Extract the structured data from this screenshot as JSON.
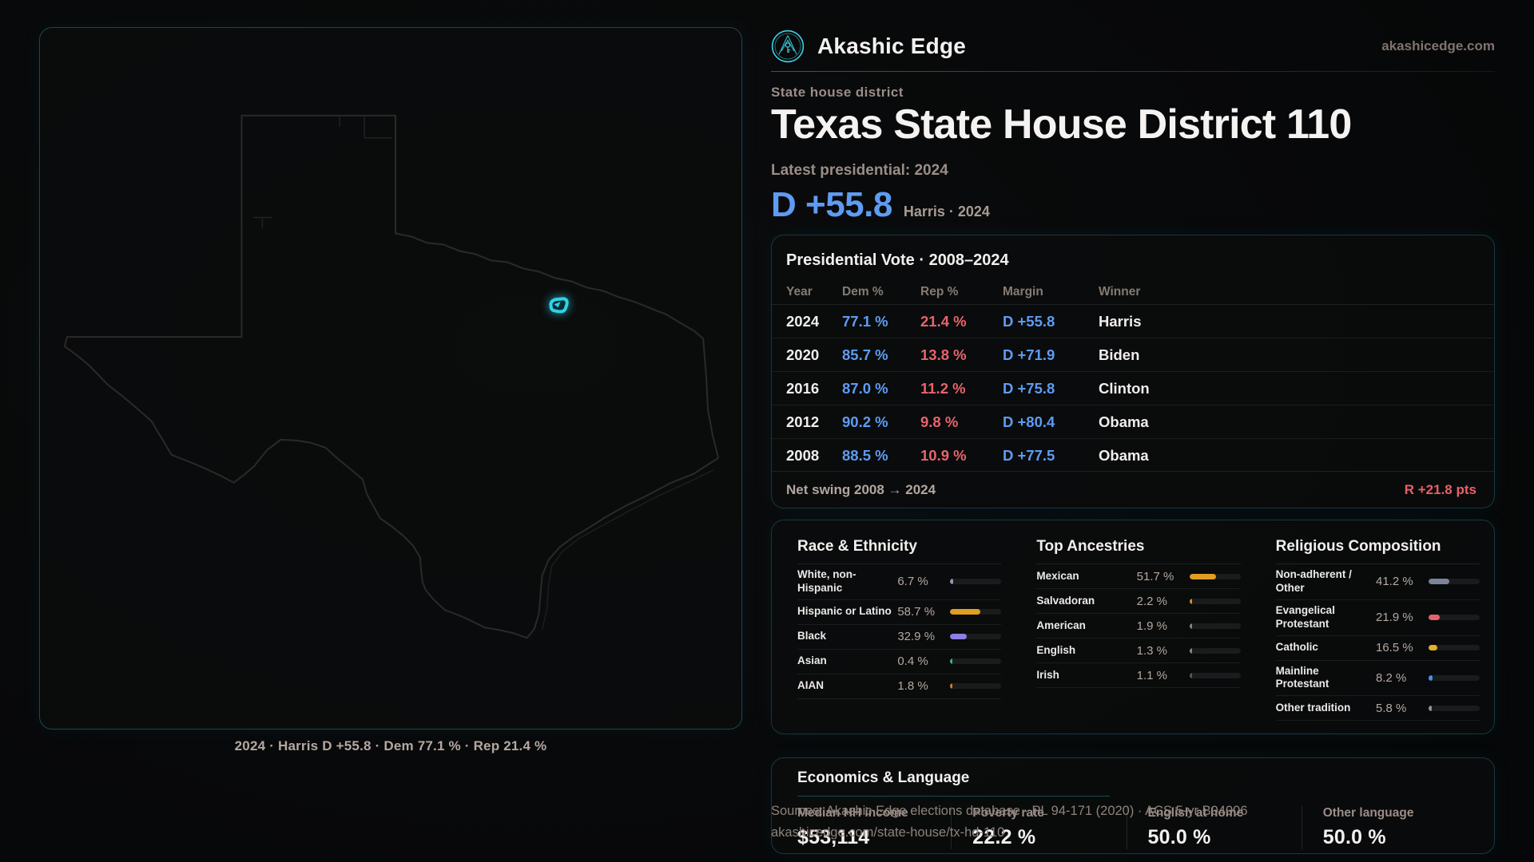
{
  "brand": {
    "name": "Akashic Edge",
    "domain": "akashicedge.com",
    "logo_icon": "akashic-edge-emblem"
  },
  "page": {
    "kicker": "State house district",
    "title": "Texas State House District 110",
    "latest_label": "Latest presidential: 2024",
    "margin_value": "D +55.8",
    "margin_context": "Harris · 2024"
  },
  "map": {
    "caption": "2024 · Harris D +55.8 · Dem 77.1 % · Rep 21.4 %",
    "district_color": "#2fd3e6"
  },
  "presidential_table": {
    "title": "Presidential Vote · 2008–2024",
    "columns": [
      "Year",
      "Dem %",
      "Rep %",
      "Margin",
      "Winner"
    ],
    "rows": [
      {
        "year": "2024",
        "dem": "77.1 %",
        "rep": "21.4 %",
        "margin": "D +55.8",
        "winner": "Harris"
      },
      {
        "year": "2020",
        "dem": "85.7 %",
        "rep": "13.8 %",
        "margin": "D +71.9",
        "winner": "Biden"
      },
      {
        "year": "2016",
        "dem": "87.0 %",
        "rep": "11.2 %",
        "margin": "D +75.8",
        "winner": "Clinton"
      },
      {
        "year": "2012",
        "dem": "90.2 %",
        "rep": "9.8 %",
        "margin": "D +80.4",
        "winner": "Obama"
      },
      {
        "year": "2008",
        "dem": "88.5 %",
        "rep": "10.9 %",
        "margin": "D +77.5",
        "winner": "Obama"
      }
    ],
    "footer": {
      "label": "Net swing 2008 → 2024",
      "value": "R +21.8 pts"
    }
  },
  "demographics": {
    "sections": [
      {
        "title": "Race & Ethnicity",
        "rows": [
          {
            "label": "White, non-Hispanic",
            "value": "6.7 %",
            "pct": 6.7,
            "color": "#8e9ab0"
          },
          {
            "label": "Hispanic or Latino",
            "value": "58.7 %",
            "pct": 58.7,
            "color": "#e29d23"
          },
          {
            "label": "Black",
            "value": "32.9 %",
            "pct": 32.9,
            "color": "#8f7ce6"
          },
          {
            "label": "Asian",
            "value": "0.4 %",
            "pct": 0.4,
            "color": "#35b58e"
          },
          {
            "label": "AIAN",
            "value": "1.8 %",
            "pct": 1.8,
            "color": "#cf7e22"
          }
        ]
      },
      {
        "title": "Top Ancestries",
        "rows": [
          {
            "label": "Mexican",
            "value": "51.7 %",
            "pct": 51.7,
            "color": "#e29d23"
          },
          {
            "label": "Salvadoran",
            "value": "2.2 %",
            "pct": 2.2,
            "color": "#d98d25"
          },
          {
            "label": "American",
            "value": "1.9 %",
            "pct": 1.9,
            "color": "#83878d"
          },
          {
            "label": "English",
            "value": "1.3 %",
            "pct": 1.3,
            "color": "#83878d"
          },
          {
            "label": "Irish",
            "value": "1.1 %",
            "pct": 1.1,
            "color": "#55585c"
          }
        ]
      },
      {
        "title": "Religious Composition",
        "rows": [
          {
            "label": "Non-adherent / Other",
            "value": "41.2 %",
            "pct": 41.2,
            "color": "#7b8499"
          },
          {
            "label": "Evangelical Protestant",
            "value": "21.9 %",
            "pct": 21.9,
            "color": "#e0646c"
          },
          {
            "label": "Catholic",
            "value": "16.5 %",
            "pct": 16.5,
            "color": "#e2b02c"
          },
          {
            "label": "Mainline Protestant",
            "value": "8.2 %",
            "pct": 8.2,
            "color": "#4a8fe8"
          },
          {
            "label": "Other tradition",
            "value": "5.8 %",
            "pct": 5.8,
            "color": "#8d929b"
          }
        ]
      }
    ]
  },
  "economics": {
    "title": "Economics & Language",
    "stats": [
      {
        "label": "Median HH income",
        "value": "$53,114"
      },
      {
        "label": "Poverty rate",
        "value": "22.2 %"
      },
      {
        "label": "English at home",
        "value": "50.0 %"
      },
      {
        "label": "Other language",
        "value": "50.0 %"
      }
    ]
  },
  "sources": {
    "line1": "Sources: Akashic Edge elections database · PL 94-171 (2020) · ACS 5-yr B04006",
    "line2": "akashicedge.com/state-house/tx-hd-110"
  },
  "colors": {
    "accent_teal": "#2fd3e6",
    "dem_blue": "#5e9cf3",
    "rep_red": "#e6646c",
    "swing_red": "#ea5f68"
  }
}
